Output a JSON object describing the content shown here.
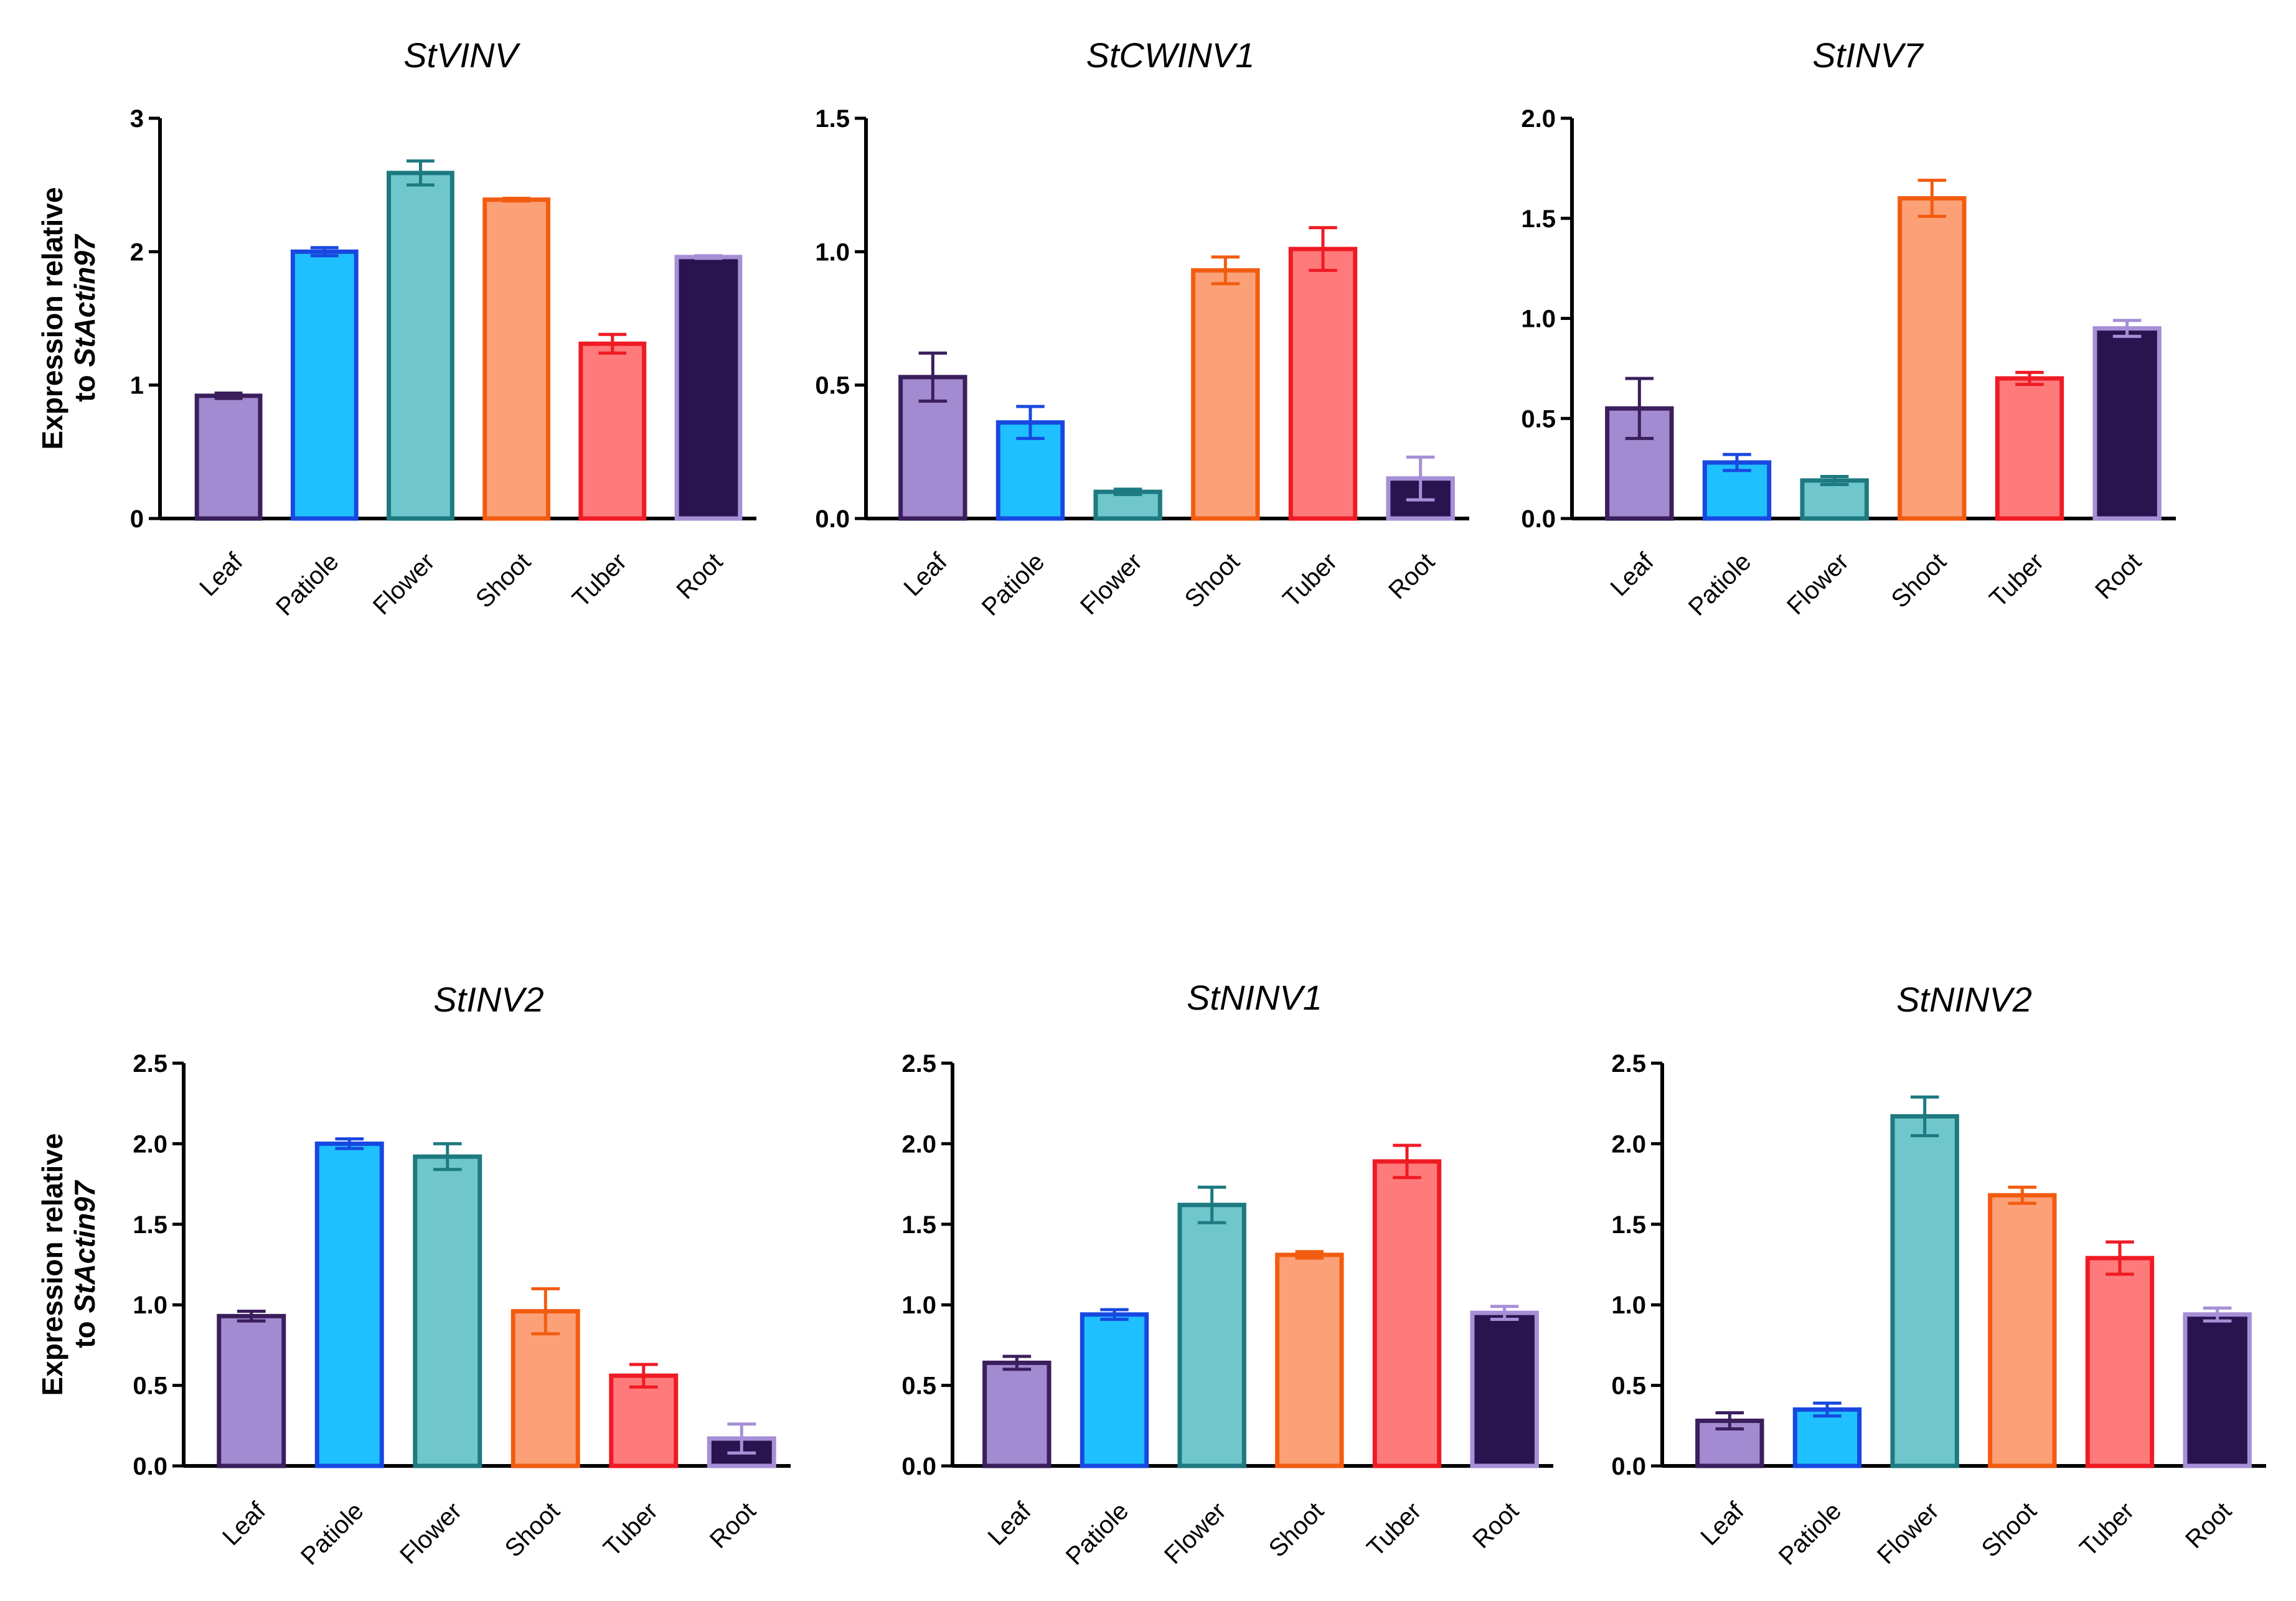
{
  "figure": {
    "ylabel_line1": "Expression relative",
    "ylabel_line2_prefix": "to ",
    "ylabel_line2_gene": "StActin97",
    "colors": {
      "Leaf": {
        "fill": "#a38bd1",
        "edge": "#3a1f5c"
      },
      "Patiole": {
        "fill": "#1ec0ff",
        "edge": "#1848e0"
      },
      "Flower": {
        "fill": "#6fc7cc",
        "edge": "#1d7a80"
      },
      "Shoot": {
        "fill": "#fca078",
        "edge": "#f25c10"
      },
      "Tuber": {
        "fill": "#ff7b7b",
        "edge": "#ee1b24"
      },
      "Root": {
        "fill": "#2a1450",
        "edge": "#a68fd6"
      }
    }
  },
  "chart_data": [
    {
      "type": "bar",
      "title": "StVINV",
      "categories": [
        "Leaf",
        "Patiole",
        "Flower",
        "Shoot",
        "Tuber",
        "Root"
      ],
      "values": [
        0.92,
        2.0,
        2.59,
        2.39,
        1.31,
        1.96
      ],
      "errors": [
        0.02,
        0.03,
        0.09,
        0.01,
        0.07,
        0.01
      ],
      "ylim": [
        0,
        3
      ],
      "yticks": [
        "0",
        "1",
        "2",
        "3"
      ],
      "ytick_values": [
        0,
        1,
        2,
        3
      ],
      "show_ylabel": true
    },
    {
      "type": "bar",
      "title": "StCWINV1",
      "categories": [
        "Leaf",
        "Patiole",
        "Flower",
        "Shoot",
        "Tuber",
        "Root"
      ],
      "values": [
        0.53,
        0.36,
        0.1,
        0.93,
        1.01,
        0.15
      ],
      "errors": [
        0.09,
        0.06,
        0.01,
        0.05,
        0.08,
        0.08
      ],
      "ylim": [
        0,
        1.5
      ],
      "yticks": [
        "0.0",
        "0.5",
        "1.0",
        "1.5"
      ],
      "ytick_values": [
        0,
        0.5,
        1.0,
        1.5
      ],
      "show_ylabel": false
    },
    {
      "type": "bar",
      "title": "StINV7",
      "categories": [
        "Leaf",
        "Patiole",
        "Flower",
        "Shoot",
        "Tuber",
        "Root"
      ],
      "values": [
        0.55,
        0.28,
        0.19,
        1.6,
        0.7,
        0.95
      ],
      "errors": [
        0.15,
        0.04,
        0.02,
        0.09,
        0.03,
        0.04
      ],
      "ylim": [
        0,
        2.0
      ],
      "yticks": [
        "0.0",
        "0.5",
        "1.0",
        "1.5",
        "2.0"
      ],
      "ytick_values": [
        0,
        0.5,
        1.0,
        1.5,
        2.0
      ],
      "show_ylabel": false
    },
    {
      "type": "bar",
      "title": "StINV2",
      "categories": [
        "Leaf",
        "Patiole",
        "Flower",
        "Shoot",
        "Tuber",
        "Root"
      ],
      "values": [
        0.93,
        2.0,
        1.92,
        0.96,
        0.56,
        0.17
      ],
      "errors": [
        0.03,
        0.03,
        0.08,
        0.14,
        0.07,
        0.09
      ],
      "ylim": [
        0,
        2.5
      ],
      "yticks": [
        "0.0",
        "0.5",
        "1.0",
        "1.5",
        "2.0",
        "2.5"
      ],
      "ytick_values": [
        0,
        0.5,
        1.0,
        1.5,
        2.0,
        2.5
      ],
      "show_ylabel": true
    },
    {
      "type": "bar",
      "title": "StNINV1",
      "categories": [
        "Leaf",
        "Patiole",
        "Flower",
        "Shoot",
        "Tuber",
        "Root"
      ],
      "values": [
        0.64,
        0.94,
        1.62,
        1.31,
        1.89,
        0.95
      ],
      "errors": [
        0.04,
        0.03,
        0.11,
        0.02,
        0.1,
        0.04
      ],
      "ylim": [
        0,
        2.5
      ],
      "yticks": [
        "0.0",
        "0.5",
        "1.0",
        "1.5",
        "2.0",
        "2.5"
      ],
      "ytick_values": [
        0,
        0.5,
        1.0,
        1.5,
        2.0,
        2.5
      ],
      "show_ylabel": false
    },
    {
      "type": "bar",
      "title": "StNINV2",
      "categories": [
        "Leaf",
        "Patiole",
        "Flower",
        "Shoot",
        "Tuber",
        "Root"
      ],
      "values": [
        0.28,
        0.35,
        2.17,
        1.68,
        1.29,
        0.94
      ],
      "errors": [
        0.05,
        0.04,
        0.12,
        0.05,
        0.1,
        0.04
      ],
      "ylim": [
        0,
        2.5
      ],
      "yticks": [
        "0.0",
        "0.5",
        "1.0",
        "1.5",
        "2.0",
        "2.5"
      ],
      "ytick_values": [
        0,
        0.5,
        1.0,
        1.5,
        2.0,
        2.5
      ],
      "show_ylabel": false
    }
  ]
}
